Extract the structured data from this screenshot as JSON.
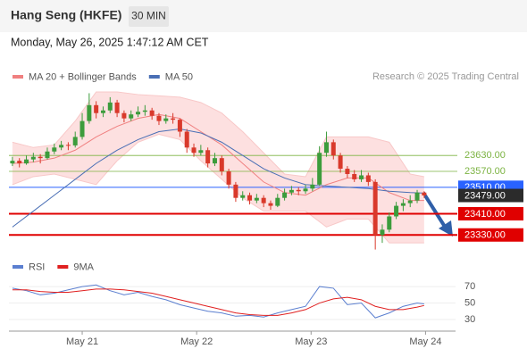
{
  "chart_data": {
    "type": "candlestick",
    "title": "Hang Seng (HKFE)",
    "timeframe": "30 MIN",
    "timestamp": "Monday, May 26, 2025 1:47:12 AM CET",
    "attribution": "Research © 2025 Trading Central",
    "up_color": "#3c9c3c",
    "down_color": "#d9392b",
    "xlim": [
      -0.5,
      63.5
    ],
    "ylim": [
      23250,
      23880
    ],
    "xticks": [
      {
        "value": 10,
        "label": "May 21"
      },
      {
        "value": 26.4,
        "label": "May 22"
      },
      {
        "value": 42.8,
        "label": "May 23"
      },
      {
        "value": 59.2,
        "label": "May 24"
      }
    ],
    "candles": [
      [
        23600,
        23625,
        23590,
        23610
      ],
      [
        23610,
        23620,
        23585,
        23600
      ],
      [
        23600,
        23630,
        23595,
        23615
      ],
      [
        23615,
        23640,
        23605,
        23625
      ],
      [
        23625,
        23635,
        23600,
        23620
      ],
      [
        23620,
        23660,
        23615,
        23645
      ],
      [
        23645,
        23675,
        23635,
        23660
      ],
      [
        23660,
        23685,
        23650,
        23670
      ],
      [
        23670,
        23680,
        23650,
        23668
      ],
      [
        23668,
        23720,
        23660,
        23700
      ],
      [
        23700,
        23790,
        23690,
        23760
      ],
      [
        23760,
        23865,
        23750,
        23820
      ],
      [
        23820,
        23835,
        23770,
        23790
      ],
      [
        23790,
        23815,
        23775,
        23800
      ],
      [
        23800,
        23850,
        23790,
        23830
      ],
      [
        23830,
        23840,
        23775,
        23790
      ],
      [
        23790,
        23800,
        23755,
        23770
      ],
      [
        23770,
        23800,
        23760,
        23785
      ],
      [
        23785,
        23815,
        23775,
        23795
      ],
      [
        23795,
        23820,
        23780,
        23800
      ],
      [
        23800,
        23810,
        23765,
        23780
      ],
      [
        23780,
        23790,
        23745,
        23760
      ],
      [
        23760,
        23785,
        23750,
        23770
      ],
      [
        23770,
        23790,
        23750,
        23765
      ],
      [
        23765,
        23770,
        23700,
        23720
      ],
      [
        23720,
        23730,
        23640,
        23660
      ],
      [
        23660,
        23675,
        23625,
        23640
      ],
      [
        23640,
        23670,
        23630,
        23650
      ],
      [
        23650,
        23660,
        23585,
        23600
      ],
      [
        23600,
        23640,
        23590,
        23620
      ],
      [
        23620,
        23630,
        23555,
        23570
      ],
      [
        23570,
        23580,
        23505,
        23520
      ],
      [
        23520,
        23530,
        23455,
        23470
      ],
      [
        23470,
        23495,
        23460,
        23480
      ],
      [
        23480,
        23490,
        23445,
        23460
      ],
      [
        23460,
        23485,
        23450,
        23470
      ],
      [
        23470,
        23480,
        23435,
        23450
      ],
      [
        23450,
        23460,
        23425,
        23440
      ],
      [
        23440,
        23485,
        23435,
        23470
      ],
      [
        23470,
        23505,
        23460,
        23490
      ],
      [
        23490,
        23515,
        23480,
        23500
      ],
      [
        23500,
        23510,
        23480,
        23495
      ],
      [
        23495,
        23520,
        23485,
        23505
      ],
      [
        23505,
        23545,
        23495,
        23520
      ],
      [
        23520,
        23665,
        23515,
        23640
      ],
      [
        23640,
        23720,
        23625,
        23680
      ],
      [
        23680,
        23690,
        23615,
        23630
      ],
      [
        23630,
        23640,
        23565,
        23580
      ],
      [
        23580,
        23590,
        23545,
        23560
      ],
      [
        23560,
        23575,
        23530,
        23540
      ],
      [
        23540,
        23575,
        23530,
        23555
      ],
      [
        23555,
        23565,
        23515,
        23530
      ],
      [
        23530,
        23540,
        23275,
        23330
      ],
      [
        23330,
        23370,
        23300,
        23350
      ],
      [
        23350,
        23415,
        23340,
        23400
      ],
      [
        23400,
        23455,
        23390,
        23440
      ],
      [
        23440,
        23465,
        23420,
        23450
      ],
      [
        23450,
        23480,
        23435,
        23460
      ],
      [
        23460,
        23500,
        23450,
        23490
      ],
      [
        23490,
        23495,
        23470,
        23479
      ]
    ],
    "overlays": [
      {
        "name": "MA 20 + Bollinger Bands",
        "color": "#f08080",
        "band_color": "#fde0e0",
        "x": [
          0,
          3,
          6,
          9,
          12,
          15,
          18,
          21,
          24,
          27,
          30,
          33,
          36,
          39,
          42,
          45,
          48,
          51,
          54,
          57,
          59
        ],
        "values": [
          23600,
          23605,
          23620,
          23650,
          23700,
          23740,
          23770,
          23785,
          23770,
          23720,
          23670,
          23600,
          23530,
          23490,
          23480,
          23520,
          23545,
          23545,
          23490,
          23460,
          23460
        ],
        "upper": [
          23680,
          23660,
          23670,
          23760,
          23870,
          23870,
          23860,
          23855,
          23850,
          23830,
          23790,
          23720,
          23640,
          23560,
          23550,
          23700,
          23700,
          23700,
          23680,
          23560,
          23550
        ],
        "lower": [
          23520,
          23550,
          23560,
          23540,
          23520,
          23610,
          23680,
          23710,
          23690,
          23610,
          23540,
          23470,
          23420,
          23420,
          23420,
          23360,
          23390,
          23390,
          23300,
          23300,
          23300
        ]
      },
      {
        "name": "MA 50",
        "color": "#4a6fb5",
        "x": [
          0,
          3,
          6,
          9,
          12,
          15,
          18,
          21,
          24,
          27,
          30,
          33,
          36,
          39,
          42,
          45,
          48,
          51,
          54,
          57,
          59
        ],
        "values": [
          23360,
          23420,
          23480,
          23540,
          23600,
          23650,
          23690,
          23720,
          23730,
          23715,
          23680,
          23630,
          23580,
          23545,
          23520,
          23515,
          23510,
          23505,
          23495,
          23490,
          23488
        ]
      }
    ],
    "levels": [
      {
        "value": 23630,
        "label": "23630.00",
        "color": "#7cb342",
        "style": "thin"
      },
      {
        "value": 23570,
        "label": "23570.00",
        "color": "#7cb342",
        "style": "thin"
      },
      {
        "value": 23510,
        "label": "23510.00",
        "color": "#2962ff",
        "style": "line"
      },
      {
        "value": 23479,
        "label": "23479.00",
        "color": "#2b2b2b",
        "style": "tag"
      },
      {
        "value": 23410,
        "label": "23410.00",
        "color": "#e00000",
        "style": "thick"
      },
      {
        "value": 23330,
        "label": "23330.00",
        "color": "#e00000",
        "style": "thick"
      }
    ],
    "rsi": {
      "ylim": [
        17,
        82
      ],
      "yticks": [
        30,
        50,
        70
      ],
      "series": [
        {
          "name": "RSI",
          "color": "#5b7fd0",
          "x": [
            0,
            2,
            4,
            6,
            8,
            10,
            12,
            14,
            16,
            18,
            20,
            22,
            24,
            26,
            28,
            30,
            32,
            34,
            36,
            38,
            40,
            42,
            44,
            46,
            48,
            50,
            52,
            54,
            56,
            58,
            59
          ],
          "values": [
            68,
            65,
            60,
            62,
            66,
            70,
            72,
            65,
            60,
            63,
            58,
            54,
            48,
            44,
            40,
            38,
            34,
            35,
            33,
            38,
            42,
            46,
            70,
            68,
            48,
            50,
            32,
            38,
            46,
            50,
            49
          ]
        },
        {
          "name": "9MA",
          "color": "#e02020",
          "x": [
            0,
            2,
            4,
            6,
            8,
            10,
            12,
            14,
            16,
            18,
            20,
            22,
            24,
            26,
            28,
            30,
            32,
            34,
            36,
            38,
            40,
            42,
            44,
            46,
            48,
            50,
            52,
            54,
            56,
            58,
            59
          ],
          "values": [
            66,
            66,
            64,
            63,
            63,
            65,
            67,
            67,
            66,
            64,
            62,
            58,
            54,
            50,
            46,
            42,
            38,
            36,
            35,
            35,
            38,
            42,
            50,
            55,
            57,
            54,
            46,
            42,
            42,
            45,
            47
          ]
        }
      ]
    }
  }
}
